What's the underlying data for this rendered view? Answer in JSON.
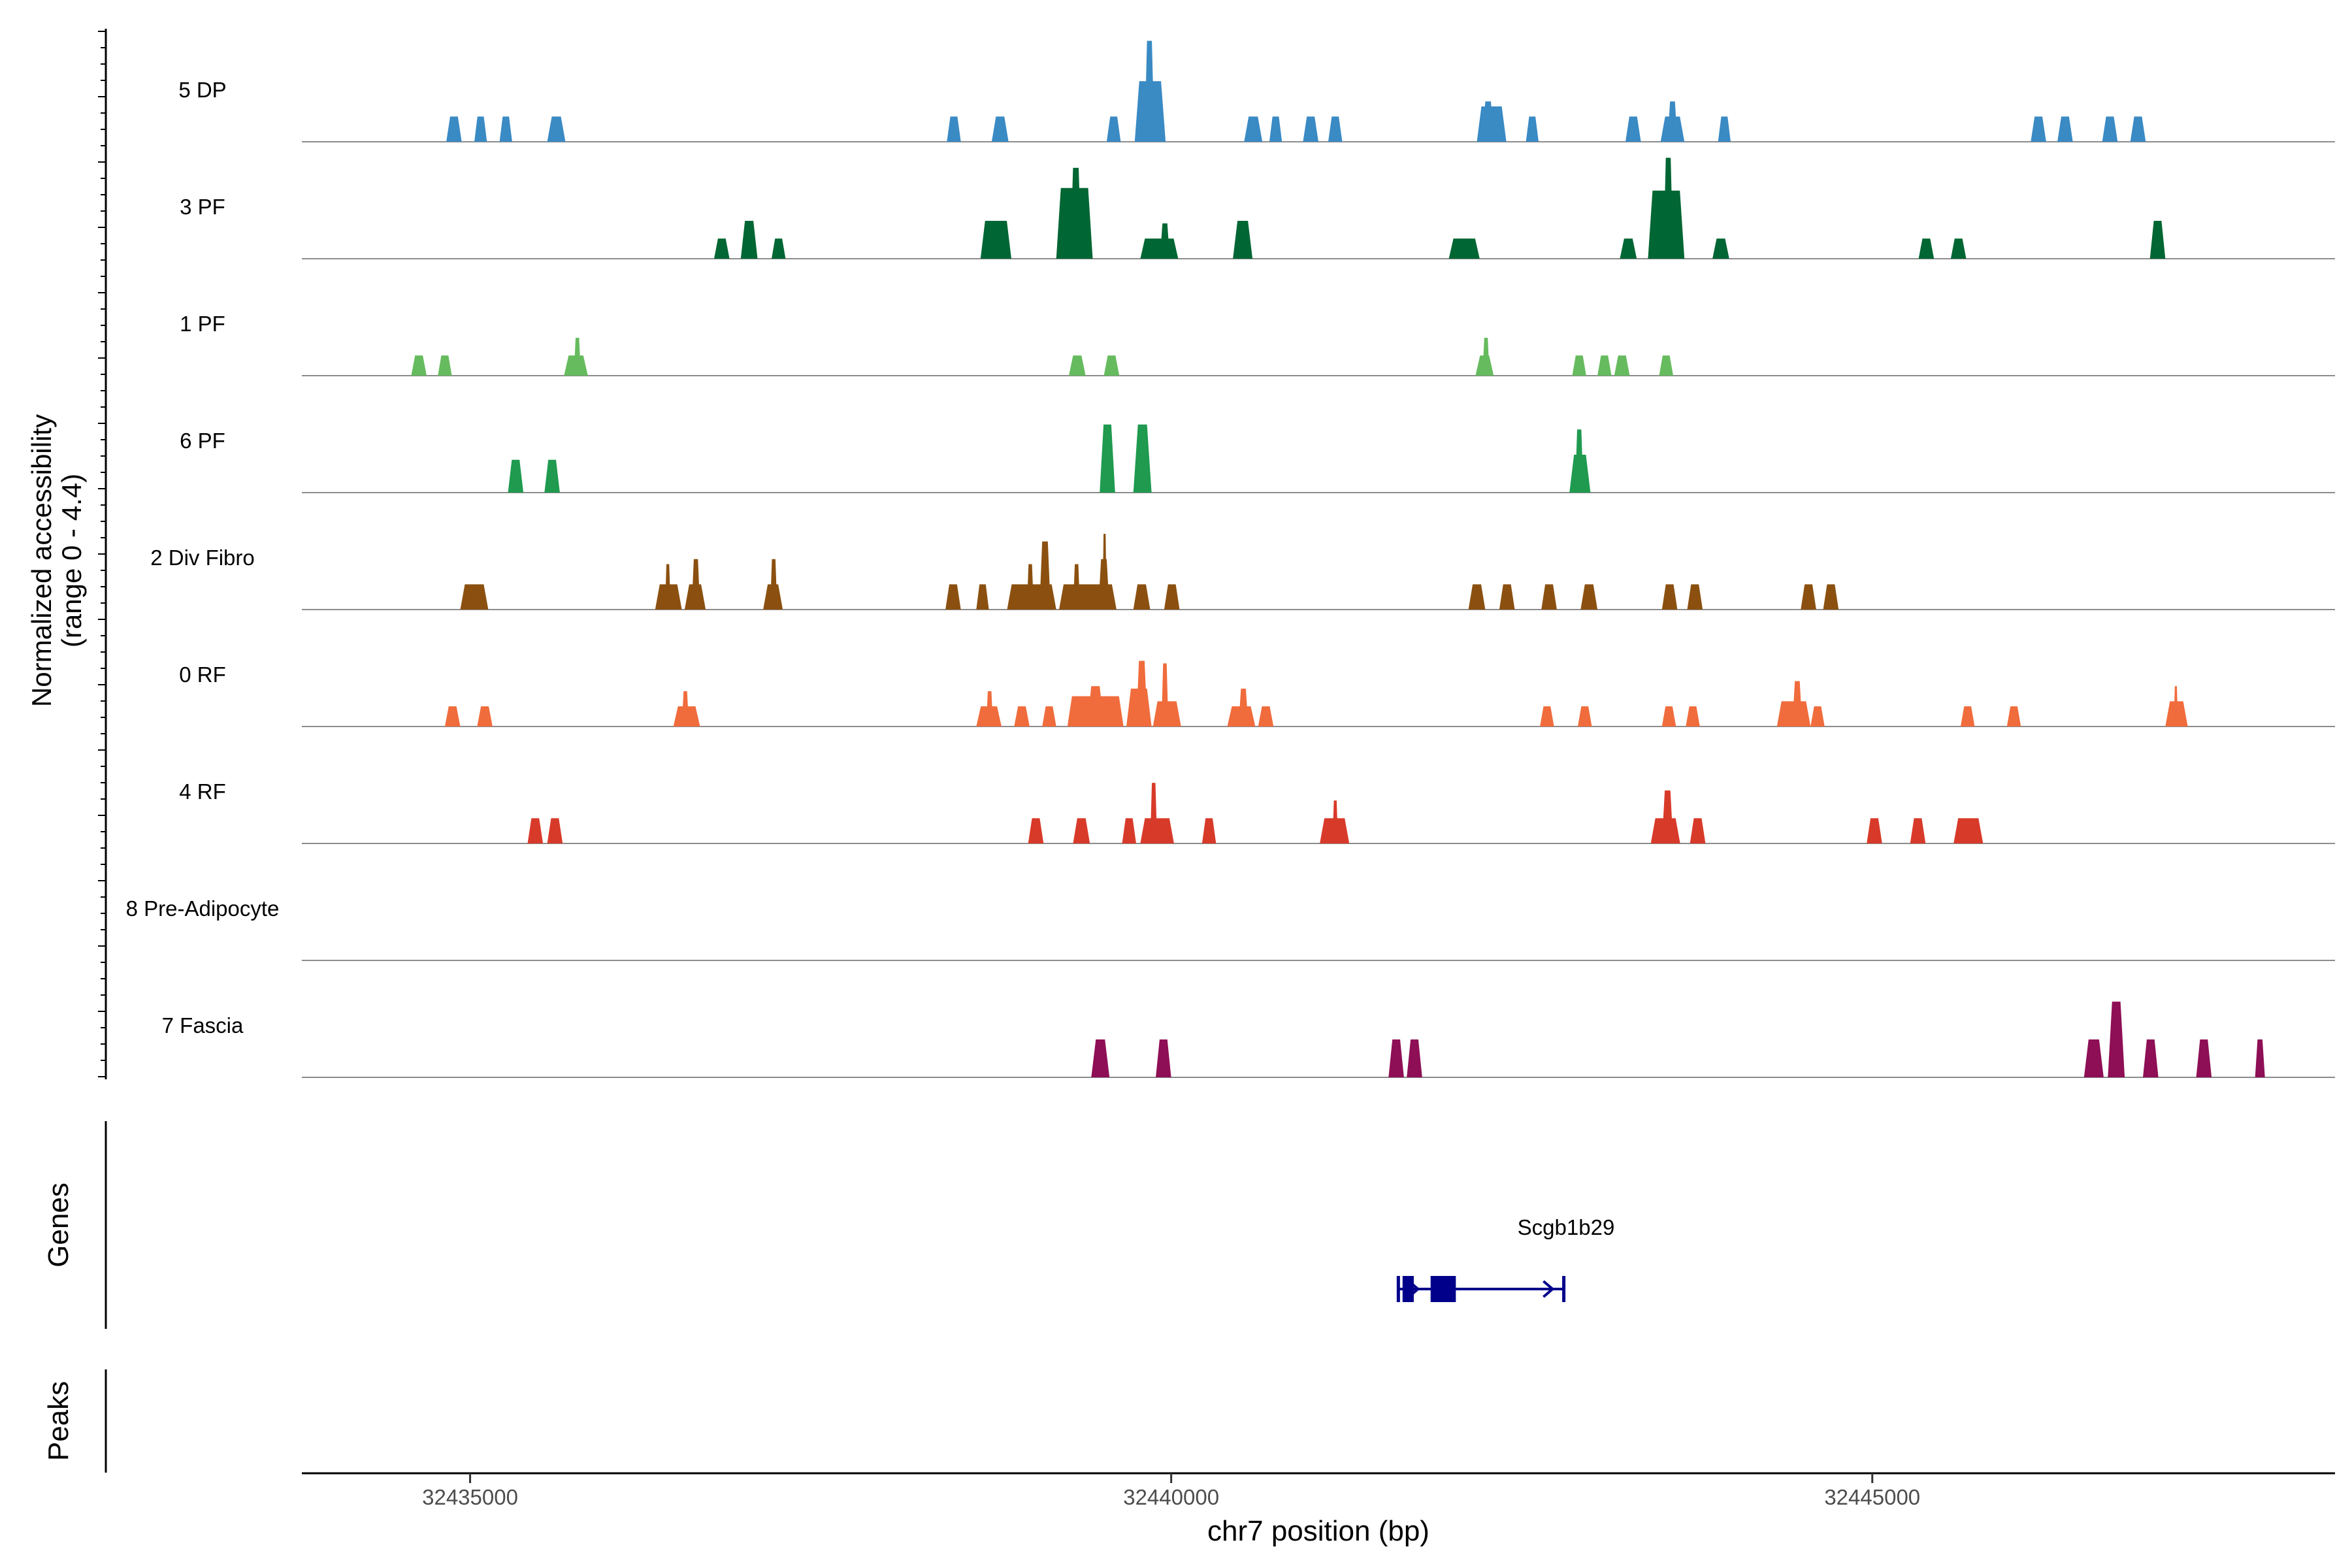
{
  "chart_data": {
    "type": "area",
    "title": "",
    "xlabel": "chr7 position (bp)",
    "ylabel_line1": "Normalized accessibility",
    "ylabel_line2": "(range 0 - 4.4)",
    "y_range": [
      0,
      4.4
    ],
    "x_range": [
      32433800,
      32448300
    ],
    "x_ticks": [
      32435000,
      32440000,
      32445000
    ],
    "x_tick_labels": [
      "32435000",
      "32440000",
      "32445000"
    ],
    "tracks": [
      {
        "name": "5 DP",
        "color": "#3a8ac4",
        "peaks": [
          [
            32434830,
            32434940,
            1.0
          ],
          [
            32435030,
            32435120,
            1.0
          ],
          [
            32435210,
            32435300,
            1.0
          ],
          [
            32435550,
            32435680,
            1.0
          ],
          [
            32438400,
            32438500,
            1.0
          ],
          [
            32438720,
            32438840,
            1.0
          ],
          [
            32439540,
            32439640,
            1.0
          ],
          [
            32439740,
            32439960,
            2.4
          ],
          [
            32439810,
            32439880,
            4.0
          ],
          [
            32440520,
            32440650,
            1.0
          ],
          [
            32440700,
            32440790,
            1.0
          ],
          [
            32440940,
            32441050,
            1.0
          ],
          [
            32441120,
            32441220,
            1.0
          ],
          [
            32442180,
            32442390,
            1.4
          ],
          [
            32442220,
            32442300,
            1.6
          ],
          [
            32442530,
            32442620,
            1.0
          ],
          [
            32443240,
            32443350,
            1.0
          ],
          [
            32443490,
            32443660,
            1.0
          ],
          [
            32443540,
            32443610,
            1.6
          ],
          [
            32443900,
            32443990,
            1.0
          ],
          [
            32446130,
            32446240,
            1.0
          ],
          [
            32446320,
            32446430,
            1.0
          ],
          [
            32446640,
            32446750,
            1.0
          ],
          [
            32446840,
            32446950,
            1.0
          ]
        ]
      },
      {
        "name": "3 PF",
        "color": "#006633",
        "peaks": [
          [
            32436740,
            32436850,
            0.8
          ],
          [
            32436930,
            32437050,
            1.5
          ],
          [
            32437150,
            32437250,
            0.8
          ],
          [
            32438640,
            32438860,
            1.5
          ],
          [
            32439180,
            32439440,
            2.8
          ],
          [
            32439280,
            32439360,
            3.6
          ],
          [
            32439780,
            32440050,
            0.8
          ],
          [
            32439920,
            32439990,
            1.4
          ],
          [
            32440440,
            32440580,
            1.5
          ],
          [
            32441980,
            32442200,
            0.8
          ],
          [
            32443200,
            32443320,
            0.8
          ],
          [
            32443400,
            32443660,
            2.7
          ],
          [
            32443510,
            32443580,
            4.0
          ],
          [
            32443860,
            32443980,
            0.8
          ],
          [
            32445330,
            32445440,
            0.8
          ],
          [
            32445560,
            32445670,
            0.8
          ],
          [
            32446980,
            32447090,
            1.5
          ]
        ]
      },
      {
        "name": "1 PF",
        "color": "#66bb5e",
        "peaks": [
          [
            32434580,
            32434690,
            0.8
          ],
          [
            32434770,
            32434870,
            0.8
          ],
          [
            32435670,
            32435840,
            0.8
          ],
          [
            32435740,
            32435790,
            1.5
          ],
          [
            32439270,
            32439390,
            0.8
          ],
          [
            32439520,
            32439630,
            0.8
          ],
          [
            32442170,
            32442300,
            0.8
          ],
          [
            32442220,
            32442270,
            1.5
          ],
          [
            32442860,
            32442960,
            0.8
          ],
          [
            32443040,
            32443140,
            0.8
          ],
          [
            32443160,
            32443270,
            0.8
          ],
          [
            32443480,
            32443580,
            0.8
          ]
        ]
      },
      {
        "name": "6 PF",
        "color": "#1f9a4f",
        "peaks": [
          [
            32435270,
            32435380,
            1.3
          ],
          [
            32435530,
            32435640,
            1.3
          ],
          [
            32439490,
            32439600,
            2.7
          ],
          [
            32439730,
            32439860,
            2.7
          ],
          [
            32442840,
            32442990,
            1.5
          ],
          [
            32442880,
            32442940,
            2.5
          ]
        ]
      },
      {
        "name": "2 Div Fibro",
        "color": "#8b5010",
        "peaks": [
          [
            32434930,
            32435130,
            1.0
          ],
          [
            32436320,
            32436510,
            1.0
          ],
          [
            32436390,
            32436430,
            1.8
          ],
          [
            32436530,
            32436680,
            1.0
          ],
          [
            32436580,
            32436640,
            2.0
          ],
          [
            32437090,
            32437230,
            1.0
          ],
          [
            32437140,
            32437190,
            2.0
          ],
          [
            32438390,
            32438500,
            1.0
          ],
          [
            32438610,
            32438700,
            1.0
          ],
          [
            32438830,
            32439180,
            1.0
          ],
          [
            32438970,
            32439020,
            1.8
          ],
          [
            32439060,
            32439140,
            2.7
          ],
          [
            32439200,
            32439610,
            1.0
          ],
          [
            32439300,
            32439350,
            1.8
          ],
          [
            32439480,
            32439560,
            2.0
          ],
          [
            32439510,
            32439540,
            3.0
          ],
          [
            32439730,
            32439850,
            1.0
          ],
          [
            32439950,
            32440060,
            1.0
          ],
          [
            32442120,
            32442240,
            1.0
          ],
          [
            32442340,
            32442450,
            1.0
          ],
          [
            32442640,
            32442750,
            1.0
          ],
          [
            32442920,
            32443040,
            1.0
          ],
          [
            32443500,
            32443610,
            1.0
          ],
          [
            32443680,
            32443790,
            1.0
          ],
          [
            32444490,
            32444600,
            1.0
          ],
          [
            32444650,
            32444760,
            1.0
          ]
        ]
      },
      {
        "name": "0 RF",
        "color": "#f06c3c",
        "peaks": [
          [
            32434820,
            32434930,
            0.8
          ],
          [
            32435050,
            32435160,
            0.8
          ],
          [
            32436450,
            32436640,
            0.8
          ],
          [
            32436510,
            32436560,
            1.4
          ],
          [
            32438610,
            32438790,
            0.8
          ],
          [
            32438680,
            32438730,
            1.4
          ],
          [
            32438880,
            32438990,
            0.8
          ],
          [
            32439080,
            32439180,
            0.8
          ],
          [
            32439260,
            32439660,
            1.2
          ],
          [
            32439400,
            32439520,
            1.6
          ],
          [
            32439680,
            32439860,
            1.5
          ],
          [
            32439750,
            32439830,
            2.6
          ],
          [
            32439870,
            32440070,
            1.0
          ],
          [
            32439930,
            32439980,
            2.5
          ],
          [
            32440400,
            32440600,
            0.8
          ],
          [
            32440480,
            32440550,
            1.5
          ],
          [
            32440620,
            32440730,
            0.8
          ],
          [
            32442630,
            32442730,
            0.8
          ],
          [
            32442900,
            32443000,
            0.8
          ],
          [
            32443500,
            32443600,
            0.8
          ],
          [
            32443670,
            32443770,
            0.8
          ],
          [
            32444320,
            32444560,
            1.0
          ],
          [
            32444430,
            32444500,
            1.8
          ],
          [
            32444560,
            32444660,
            0.8
          ],
          [
            32445630,
            32445730,
            0.8
          ],
          [
            32445960,
            32446060,
            0.8
          ],
          [
            32447090,
            32447250,
            1.0
          ],
          [
            32447150,
            32447180,
            1.6
          ]
        ]
      },
      {
        "name": "4 RF",
        "color": "#d83a2a",
        "peaks": [
          [
            32435410,
            32435520,
            1.0
          ],
          [
            32435550,
            32435660,
            1.0
          ],
          [
            32438980,
            32439090,
            1.0
          ],
          [
            32439300,
            32439420,
            1.0
          ],
          [
            32439650,
            32439750,
            1.0
          ],
          [
            32439780,
            32440020,
            1.0
          ],
          [
            32439850,
            32439900,
            2.4
          ],
          [
            32440220,
            32440320,
            1.0
          ],
          [
            32441060,
            32441270,
            1.0
          ],
          [
            32441150,
            32441190,
            1.7
          ],
          [
            32443420,
            32443630,
            1.0
          ],
          [
            32443500,
            32443580,
            2.1
          ],
          [
            32443700,
            32443810,
            1.0
          ],
          [
            32444960,
            32445070,
            1.0
          ],
          [
            32445270,
            32445380,
            1.0
          ],
          [
            32445580,
            32445790,
            1.0
          ]
        ]
      },
      {
        "name": "8 Pre-Adipocyte",
        "color": "#3a8ac4",
        "peaks": []
      },
      {
        "name": "7 Fascia",
        "color": "#8e0f55",
        "peaks": [
          [
            32439430,
            32439560,
            1.5
          ],
          [
            32439890,
            32440000,
            1.5
          ],
          [
            32441550,
            32441660,
            1.5
          ],
          [
            32441680,
            32441790,
            1.5
          ],
          [
            32446510,
            32446650,
            1.5
          ],
          [
            32446680,
            32446800,
            3.0
          ],
          [
            32446930,
            32447040,
            1.5
          ],
          [
            32447310,
            32447420,
            1.5
          ],
          [
            32447730,
            32447800,
            1.5
          ]
        ]
      }
    ],
    "genes_label": "Genes",
    "peaks_label": "Peaks",
    "gene": {
      "name": "Scgb1b29",
      "color": "#00008b",
      "start": 32441620,
      "end": 32442800,
      "exons": [
        [
          32441650,
          32441730
        ],
        [
          32441850,
          32442030
        ]
      ],
      "strand": "+"
    }
  }
}
